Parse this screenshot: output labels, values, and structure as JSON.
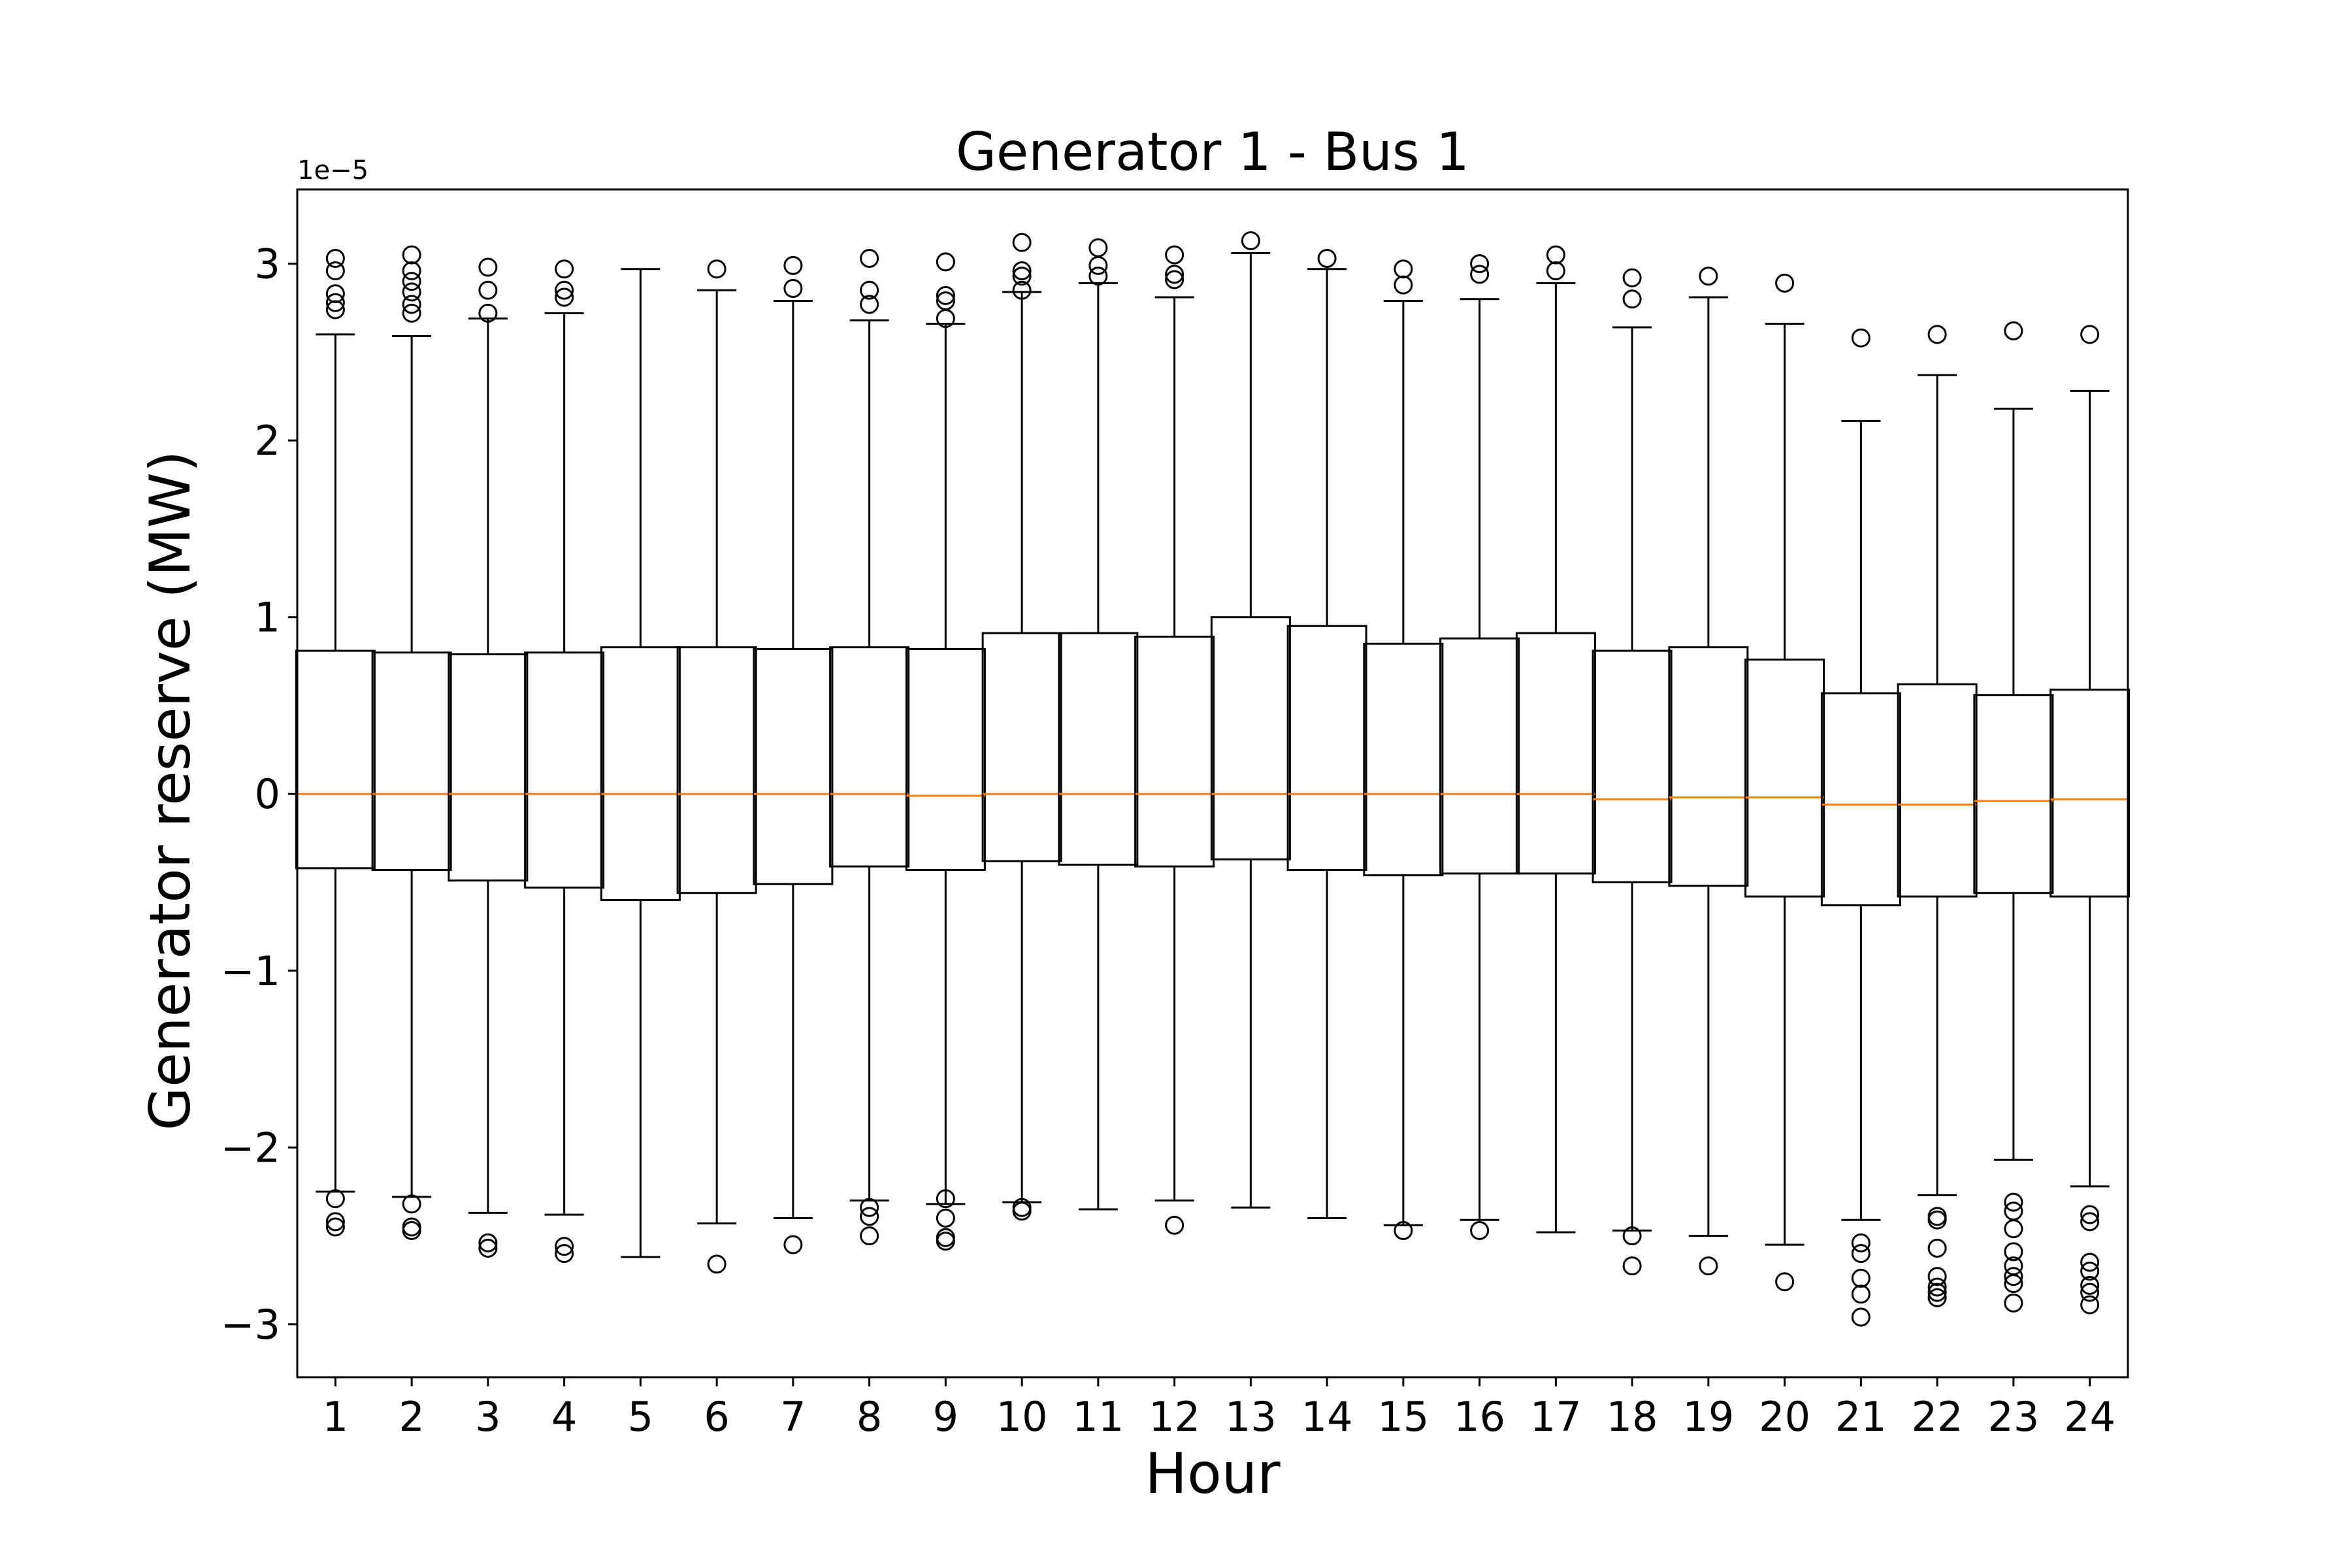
{
  "chart_data": {
    "type": "box",
    "title": "Generator 1 - Bus 1",
    "xlabel": "Hour",
    "ylabel": "Generator reserve (MW)",
    "y_scale_label": "1e−5",
    "y_scale_factor": 1e-05,
    "ylim": [
      -3.3,
      3.42
    ],
    "xlim": [
      0.5,
      24.5
    ],
    "yticks": [
      -3,
      -2,
      -1,
      0,
      1,
      2,
      3
    ],
    "ytick_labels": [
      "−3",
      "−2",
      "−1",
      "0",
      "1",
      "2",
      "3"
    ],
    "categories": [
      "1",
      "2",
      "3",
      "4",
      "5",
      "6",
      "7",
      "8",
      "9",
      "10",
      "11",
      "12",
      "13",
      "14",
      "15",
      "16",
      "17",
      "18",
      "19",
      "20",
      "21",
      "22",
      "23",
      "24"
    ],
    "grid": false,
    "colors": {
      "box": "#000000",
      "median": "#ff7f0e",
      "background": "#ffffff"
    },
    "boxes": [
      {
        "hour": 1,
        "whislo": -2.25,
        "q1": -0.42,
        "med": 0.0,
        "q3": 0.81,
        "whishi": 2.6,
        "fliers": [
          3.03,
          2.96,
          2.83,
          2.78,
          2.74,
          -2.29,
          -2.42,
          -2.45
        ]
      },
      {
        "hour": 2,
        "whislo": -2.28,
        "q1": -0.43,
        "med": 0.0,
        "q3": 0.8,
        "whishi": 2.59,
        "fliers": [
          3.05,
          2.96,
          2.9,
          2.84,
          2.77,
          2.72,
          -2.32,
          -2.45,
          -2.47
        ]
      },
      {
        "hour": 3,
        "whislo": -2.37,
        "q1": -0.49,
        "med": 0.0,
        "q3": 0.79,
        "whishi": 2.69,
        "fliers": [
          2.98,
          2.85,
          2.72,
          -2.54,
          -2.57
        ]
      },
      {
        "hour": 4,
        "whislo": -2.38,
        "q1": -0.53,
        "med": 0.0,
        "q3": 0.8,
        "whishi": 2.72,
        "fliers": [
          2.97,
          2.85,
          2.81,
          -2.56,
          -2.6
        ]
      },
      {
        "hour": 5,
        "whislo": -2.62,
        "q1": -0.6,
        "med": 0.0,
        "q3": 0.83,
        "whishi": 2.97,
        "fliers": []
      },
      {
        "hour": 6,
        "whislo": -2.43,
        "q1": -0.56,
        "med": 0.0,
        "q3": 0.83,
        "whishi": 2.85,
        "fliers": [
          2.97,
          -2.66
        ]
      },
      {
        "hour": 7,
        "whislo": -2.4,
        "q1": -0.51,
        "med": 0.0,
        "q3": 0.82,
        "whishi": 2.79,
        "fliers": [
          2.99,
          2.86,
          -2.55
        ]
      },
      {
        "hour": 8,
        "whislo": -2.3,
        "q1": -0.41,
        "med": 0.0,
        "q3": 0.83,
        "whishi": 2.68,
        "fliers": [
          3.03,
          2.85,
          2.77,
          -2.34,
          -2.39,
          -2.5
        ]
      },
      {
        "hour": 9,
        "whislo": -2.32,
        "q1": -0.43,
        "med": -0.01,
        "q3": 0.82,
        "whishi": 2.66,
        "fliers": [
          3.01,
          2.82,
          2.79,
          2.69,
          -2.29,
          -2.4,
          -2.51,
          -2.53
        ]
      },
      {
        "hour": 10,
        "whislo": -2.31,
        "q1": -0.38,
        "med": 0.0,
        "q3": 0.91,
        "whishi": 2.84,
        "fliers": [
          3.12,
          2.96,
          2.93,
          2.85,
          -2.34,
          -2.36
        ]
      },
      {
        "hour": 11,
        "whislo": -2.35,
        "q1": -0.4,
        "med": 0.0,
        "q3": 0.91,
        "whishi": 2.89,
        "fliers": [
          3.09,
          2.99,
          2.93
        ]
      },
      {
        "hour": 12,
        "whislo": -2.3,
        "q1": -0.41,
        "med": 0.0,
        "q3": 0.89,
        "whishi": 2.81,
        "fliers": [
          3.05,
          2.94,
          2.91,
          -2.44
        ]
      },
      {
        "hour": 13,
        "whislo": -2.34,
        "q1": -0.37,
        "med": 0.0,
        "q3": 1.0,
        "whishi": 3.06,
        "fliers": [
          3.13
        ]
      },
      {
        "hour": 14,
        "whislo": -2.4,
        "q1": -0.43,
        "med": 0.0,
        "q3": 0.95,
        "whishi": 2.97,
        "fliers": [
          3.03
        ]
      },
      {
        "hour": 15,
        "whislo": -2.44,
        "q1": -0.46,
        "med": 0.0,
        "q3": 0.85,
        "whishi": 2.79,
        "fliers": [
          2.97,
          2.88,
          -2.47
        ]
      },
      {
        "hour": 16,
        "whislo": -2.41,
        "q1": -0.45,
        "med": 0.0,
        "q3": 0.88,
        "whishi": 2.8,
        "fliers": [
          3.0,
          2.94,
          -2.47
        ]
      },
      {
        "hour": 17,
        "whislo": -2.48,
        "q1": -0.45,
        "med": 0.0,
        "q3": 0.91,
        "whishi": 2.89,
        "fliers": [
          3.05,
          2.96
        ]
      },
      {
        "hour": 18,
        "whislo": -2.47,
        "q1": -0.5,
        "med": -0.03,
        "q3": 0.81,
        "whishi": 2.64,
        "fliers": [
          2.92,
          2.8,
          -2.5,
          -2.67
        ]
      },
      {
        "hour": 19,
        "whislo": -2.5,
        "q1": -0.52,
        "med": -0.02,
        "q3": 0.83,
        "whishi": 2.81,
        "fliers": [
          2.93,
          -2.67
        ]
      },
      {
        "hour": 20,
        "whislo": -2.55,
        "q1": -0.58,
        "med": -0.02,
        "q3": 0.76,
        "whishi": 2.66,
        "fliers": [
          2.89,
          -2.76
        ]
      },
      {
        "hour": 21,
        "whislo": -2.41,
        "q1": -0.63,
        "med": -0.06,
        "q3": 0.57,
        "whishi": 2.11,
        "fliers": [
          2.58,
          -2.54,
          -2.6,
          -2.74,
          -2.83,
          -2.96
        ]
      },
      {
        "hour": 22,
        "whislo": -2.27,
        "q1": -0.58,
        "med": -0.06,
        "q3": 0.62,
        "whishi": 2.37,
        "fliers": [
          2.6,
          -2.39,
          -2.41,
          -2.57,
          -2.73,
          -2.79,
          -2.82,
          -2.85
        ]
      },
      {
        "hour": 23,
        "whislo": -2.07,
        "q1": -0.56,
        "med": -0.04,
        "q3": 0.56,
        "whishi": 2.18,
        "fliers": [
          2.62,
          -2.31,
          -2.36,
          -2.46,
          -2.59,
          -2.67,
          -2.73,
          -2.77,
          -2.88
        ]
      },
      {
        "hour": 24,
        "whislo": -2.22,
        "q1": -0.58,
        "med": -0.03,
        "q3": 0.59,
        "whishi": 2.28,
        "fliers": [
          2.6,
          -2.38,
          -2.42,
          -2.65,
          -2.7,
          -2.78,
          -2.82,
          -2.89
        ]
      }
    ]
  }
}
